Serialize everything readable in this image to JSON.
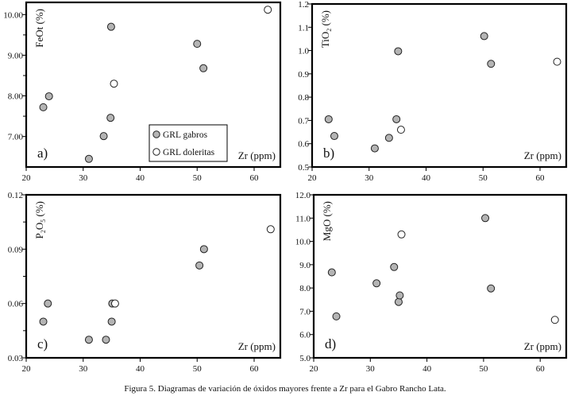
{
  "caption": "Figura 5. Diagramas de variación de óxidos mayores frente a Zr para el Gabro Rancho Lata.",
  "legend": {
    "items": [
      {
        "label": "GRL gabros",
        "fill": "#b4b4b4"
      },
      {
        "label": "GRL doleritas",
        "fill": "#ffffff"
      }
    ]
  },
  "chart_data": [
    {
      "type": "scatter",
      "panel": "a)",
      "xlabel": "Zr (ppm)",
      "ylabel": [
        {
          "t": "FeOt (%)"
        }
      ],
      "xlim": [
        20,
        64.6
      ],
      "ylim": [
        6.25,
        10.3
      ],
      "xticks": [
        20,
        30,
        40,
        50,
        60
      ],
      "xtick_labels": [
        "20",
        "30",
        "40",
        "50",
        "60"
      ],
      "yticks": [
        7,
        8,
        9,
        10
      ],
      "ytick_labels": [
        "7.00",
        "8.00",
        "9.00",
        "10.00"
      ],
      "yminor": [
        7.5,
        8.5,
        9.5
      ],
      "legend": "bottom-center",
      "series": [
        {
          "name": "GRL gabros",
          "x": [
            23,
            24,
            31,
            33.6,
            34.8,
            34.9,
            50,
            51.1
          ],
          "y": [
            7.72,
            7.99,
            6.45,
            7.01,
            7.46,
            9.7,
            9.28,
            8.68
          ]
        },
        {
          "name": "GRL doleritas",
          "x": [
            35.4,
            62.4
          ],
          "y": [
            8.3,
            10.12
          ]
        }
      ]
    },
    {
      "type": "scatter",
      "panel": "b)",
      "xlabel": "Zr (ppm)",
      "ylabel": [
        {
          "t": "TiO"
        },
        {
          "t": "2",
          "sub": true
        },
        {
          "t": " (%)"
        }
      ],
      "xlim": [
        20,
        64.6
      ],
      "ylim": [
        0.5,
        1.2
      ],
      "xticks": [
        20,
        30,
        40,
        50,
        60
      ],
      "xtick_labels": [
        "20",
        "30",
        "40",
        "50",
        "60"
      ],
      "yticks": [
        0.5,
        0.6,
        0.7,
        0.8,
        0.9,
        1.0,
        1.1,
        1.2
      ],
      "ytick_labels": [
        "0.5",
        "0.6",
        "0.7",
        "0.8",
        "0.9",
        "1.0",
        "1.1",
        "1.2"
      ],
      "yminor": [],
      "series": [
        {
          "name": "GRL gabros",
          "x": [
            22.9,
            23.9,
            31,
            33.5,
            34.8,
            35.1,
            50.2,
            51.4
          ],
          "y": [
            0.705,
            0.633,
            0.58,
            0.625,
            0.705,
            0.997,
            1.062,
            0.943
          ]
        },
        {
          "name": "GRL doleritas",
          "x": [
            35.6,
            63
          ],
          "y": [
            0.66,
            0.952
          ]
        }
      ]
    },
    {
      "type": "scatter",
      "panel": "c)",
      "xlabel": "Zr (ppm)",
      "ylabel": [
        {
          "t": "P"
        },
        {
          "t": "2",
          "sub": true
        },
        {
          "t": "O"
        },
        {
          "t": "5",
          "sub": true
        },
        {
          "t": " (%)"
        }
      ],
      "xlim": [
        20,
        64.6
      ],
      "ylim": [
        0.03,
        0.12
      ],
      "xticks": [
        20,
        30,
        40,
        50,
        60
      ],
      "xtick_labels": [
        "20",
        "30",
        "40",
        "50",
        "60"
      ],
      "yticks": [
        0.03,
        0.06,
        0.09,
        0.12
      ],
      "ytick_labels": [
        "0.03",
        "0.06",
        "0.09",
        "0.12"
      ],
      "yminor": [
        0.045,
        0.075,
        0.105
      ],
      "series": [
        {
          "name": "GRL gabros",
          "x": [
            23,
            23.8,
            31,
            34,
            35,
            35.1,
            50.4,
            51.2
          ],
          "y": [
            0.05,
            0.06,
            0.04,
            0.04,
            0.05,
            0.06,
            0.081,
            0.09
          ]
        },
        {
          "name": "GRL doleritas",
          "x": [
            35.6,
            62.9
          ],
          "y": [
            0.06,
            0.101
          ]
        }
      ]
    },
    {
      "type": "scatter",
      "panel": "d)",
      "xlabel": "Zr (ppm)",
      "ylabel": [
        {
          "t": "MgO (%)"
        }
      ],
      "xlim": [
        20,
        64.6
      ],
      "ylim": [
        5,
        12
      ],
      "xticks": [
        20,
        30,
        40,
        50,
        60
      ],
      "xtick_labels": [
        "20",
        "30",
        "40",
        "50",
        "60"
      ],
      "yticks": [
        5,
        6,
        7,
        8,
        9,
        10,
        11,
        12
      ],
      "ytick_labels": [
        "5.0",
        "6.0",
        "7.0",
        "8.0",
        "9.0",
        "10.0",
        "11.0",
        "12.0"
      ],
      "yminor": [],
      "series": [
        {
          "name": "GRL gabros",
          "x": [
            23.2,
            24,
            31.1,
            34.2,
            35,
            35.2,
            50.3,
            51.3
          ],
          "y": [
            8.67,
            6.78,
            8.2,
            8.9,
            7.4,
            7.68,
            11.0,
            7.98
          ]
        },
        {
          "name": "GRL doleritas",
          "x": [
            35.5,
            62.6
          ],
          "y": [
            10.3,
            6.63
          ]
        }
      ]
    }
  ]
}
